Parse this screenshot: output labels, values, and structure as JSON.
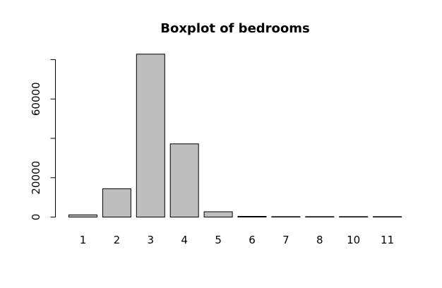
{
  "chart_data": {
    "type": "bar",
    "title": "Boxplot of bedrooms",
    "xlabel": "",
    "ylabel": "",
    "categories": [
      "1",
      "2",
      "3",
      "4",
      "5",
      "6",
      "7",
      "8",
      "10",
      "11"
    ],
    "values": [
      1100,
      14400,
      82800,
      37200,
      2700,
      350,
      40,
      12,
      5,
      2
    ],
    "ylim": [
      0,
      80000
    ],
    "yticks": [
      0,
      20000,
      60000
    ],
    "ytick_labels": [
      "0",
      "20000",
      "60000"
    ],
    "bar_color": "#bebebe",
    "grid": false,
    "legend": "none"
  }
}
